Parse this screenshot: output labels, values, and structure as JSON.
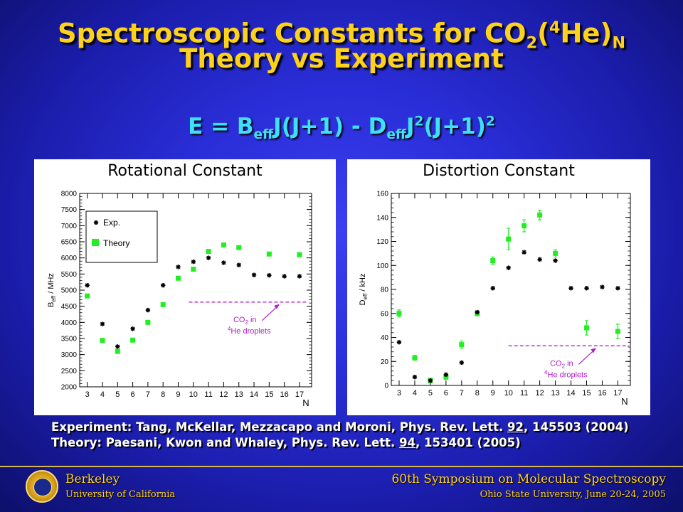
{
  "title": {
    "line1_prefix": "Spectroscopic Constants for CO",
    "line1_sub1": "2",
    "line1_paren_open": "(",
    "line1_sup": "4",
    "line1_he": "He)",
    "line1_sub2": "N",
    "line2": "Theory vs Experiment"
  },
  "formula": {
    "p1": "E = B",
    "sub1": "eff",
    "p2": "J(J+1) - D",
    "sub2": "eff",
    "p3": "J",
    "sup1": "2",
    "p4": "(J+1)",
    "sup2": "2"
  },
  "chart_data": [
    {
      "type": "scatter",
      "title": "Rotational Constant",
      "xlabel": "N",
      "ylabel": "B",
      "ylabel_sub": "eff",
      "ylabel_unit": " / MHz",
      "xlim": [
        2.5,
        17.8
      ],
      "ylim": [
        2000,
        8000
      ],
      "xticks": [
        3,
        4,
        5,
        6,
        7,
        8,
        9,
        10,
        11,
        12,
        13,
        14,
        15,
        16,
        17
      ],
      "yticks": [
        2000,
        2500,
        3000,
        3500,
        4000,
        4500,
        5000,
        5500,
        6000,
        6500,
        7000,
        7500,
        8000
      ],
      "legend": {
        "position": "top-left",
        "exp_label": "Exp.",
        "theory_label": "Theory"
      },
      "series": [
        {
          "name": "Exp.",
          "x": [
            3,
            4,
            5,
            6,
            7,
            8,
            9,
            10,
            11,
            12,
            13,
            14,
            15,
            16,
            17
          ],
          "y": [
            5150,
            3950,
            3250,
            3800,
            4380,
            5150,
            5720,
            5880,
            6000,
            5850,
            5780,
            5470,
            5460,
            5430,
            5430
          ]
        },
        {
          "name": "Theory",
          "x": [
            3,
            4,
            5,
            6,
            7,
            8,
            9,
            10,
            11,
            12,
            13,
            14,
            15,
            16,
            17
          ],
          "y": [
            4820,
            3440,
            3100,
            3450,
            4000,
            4550,
            5370,
            5650,
            6200,
            6400,
            6320,
            null,
            6120,
            null,
            6100
          ]
        }
      ],
      "reference_line": {
        "y": 4630,
        "x_from": 9.7,
        "x_to": 17.5
      },
      "annotation": {
        "line1": "CO",
        "line1_sub": "2",
        "line1_rest": " in",
        "line2_sup": "4",
        "line2": "He droplets"
      }
    },
    {
      "type": "scatter",
      "title": "Distortion Constant",
      "xlabel": "N",
      "ylabel": "D",
      "ylabel_sub": "eff",
      "ylabel_unit": " / kHz",
      "xlim": [
        2.5,
        17.8
      ],
      "ylim": [
        0,
        160
      ],
      "xticks": [
        3,
        4,
        5,
        6,
        7,
        8,
        9,
        10,
        11,
        12,
        13,
        14,
        15,
        16,
        17
      ],
      "yticks": [
        0,
        20,
        40,
        60,
        80,
        100,
        120,
        140,
        160
      ],
      "series": [
        {
          "name": "Exp.",
          "x": [
            3,
            4,
            5,
            6,
            7,
            8,
            9,
            10,
            11,
            12,
            13,
            14,
            15,
            16,
            17
          ],
          "y": [
            36,
            7,
            4,
            9,
            19,
            61,
            81,
            98,
            111,
            105,
            104,
            81,
            81,
            82,
            81
          ]
        },
        {
          "name": "Theory",
          "x": [
            3,
            4,
            5,
            6,
            7,
            8,
            9,
            10,
            11,
            12,
            13,
            14,
            15,
            16,
            17
          ],
          "y": [
            60,
            23,
            4,
            7,
            34,
            60,
            104,
            122,
            133,
            142,
            110,
            null,
            48,
            null,
            45
          ],
          "err": [
            3,
            2,
            2,
            2,
            3,
            2,
            3,
            9,
            5,
            4,
            3,
            null,
            6,
            null,
            6
          ]
        }
      ],
      "reference_line": {
        "y": 33,
        "x_from": 10,
        "x_to": 17.7
      },
      "annotation": {
        "line1": "CO",
        "line1_sub": "2",
        "line1_rest": " in",
        "line2_sup": "4",
        "line2": "He droplets"
      }
    }
  ],
  "references": {
    "exp_prefix": "Experiment: Tang, McKellar, Mezzacapo and Moroni, Phys. Rev. Lett. ",
    "exp_vol": "92",
    "exp_suffix": ", 145503 (2004)",
    "theory_prefix": "Theory: Paesani, Kwon and Whaley, Phys. Rev. Lett. ",
    "theory_vol": "94",
    "theory_suffix": ", 153401 (2005)"
  },
  "footer": {
    "left_line1": "Berkeley",
    "left_line2": "University of California",
    "right_line1": "60th Symposium on Molecular Spectroscopy",
    "right_line2": "Ohio State University, June 20-24, 2005"
  },
  "colors": {
    "title": "#ffd21a",
    "formula": "#3fe0ff",
    "theory": "#22ee22",
    "exp": "#000000",
    "reference": "#b01ec8"
  }
}
